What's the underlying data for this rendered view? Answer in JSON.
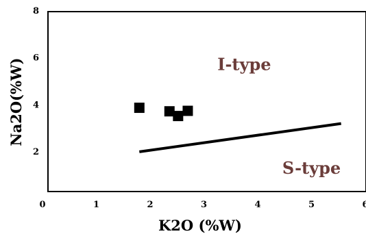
{
  "chart_data": {
    "type": "scatter",
    "title": "",
    "xlabel": "K2O (%W)",
    "ylabel": "Na2O(%W)",
    "xlim": [
      0,
      6
    ],
    "ylim": [
      0,
      8
    ],
    "x_ticks": [
      {
        "value": 0,
        "label": "0"
      },
      {
        "value": 1,
        "label": "1"
      },
      {
        "value": 2,
        "label": "2"
      },
      {
        "value": 3,
        "label": "3"
      },
      {
        "value": 4,
        "label": "4"
      },
      {
        "value": 5,
        "label": "5"
      },
      {
        "value": 6,
        "label": "6"
      }
    ],
    "y_ticks": [
      {
        "value": 2,
        "label": "2"
      },
      {
        "value": 4,
        "label": "4"
      },
      {
        "value": 6,
        "label": "6"
      },
      {
        "value": 8,
        "label": "8"
      }
    ],
    "grid": false,
    "series": [
      {
        "marker": "square",
        "color": "#000000",
        "points": [
          {
            "x": 1.8,
            "y": 3.85
          },
          {
            "x": 2.36,
            "y": 3.7
          },
          {
            "x": 2.52,
            "y": 3.5
          },
          {
            "x": 2.7,
            "y": 3.72
          }
        ]
      }
    ],
    "boundary_line": {
      "color": "#000000",
      "points": [
        {
          "x": 1.8,
          "y": 1.98
        },
        {
          "x": 5.55,
          "y": 3.18
        }
      ]
    },
    "annotations": [
      {
        "text": "I-type",
        "x": 3.75,
        "y": 5.45,
        "color": "#6b3d3a"
      },
      {
        "text": "S-type",
        "x": 5.0,
        "y": 1.05,
        "color": "#6b3d3a"
      }
    ]
  }
}
